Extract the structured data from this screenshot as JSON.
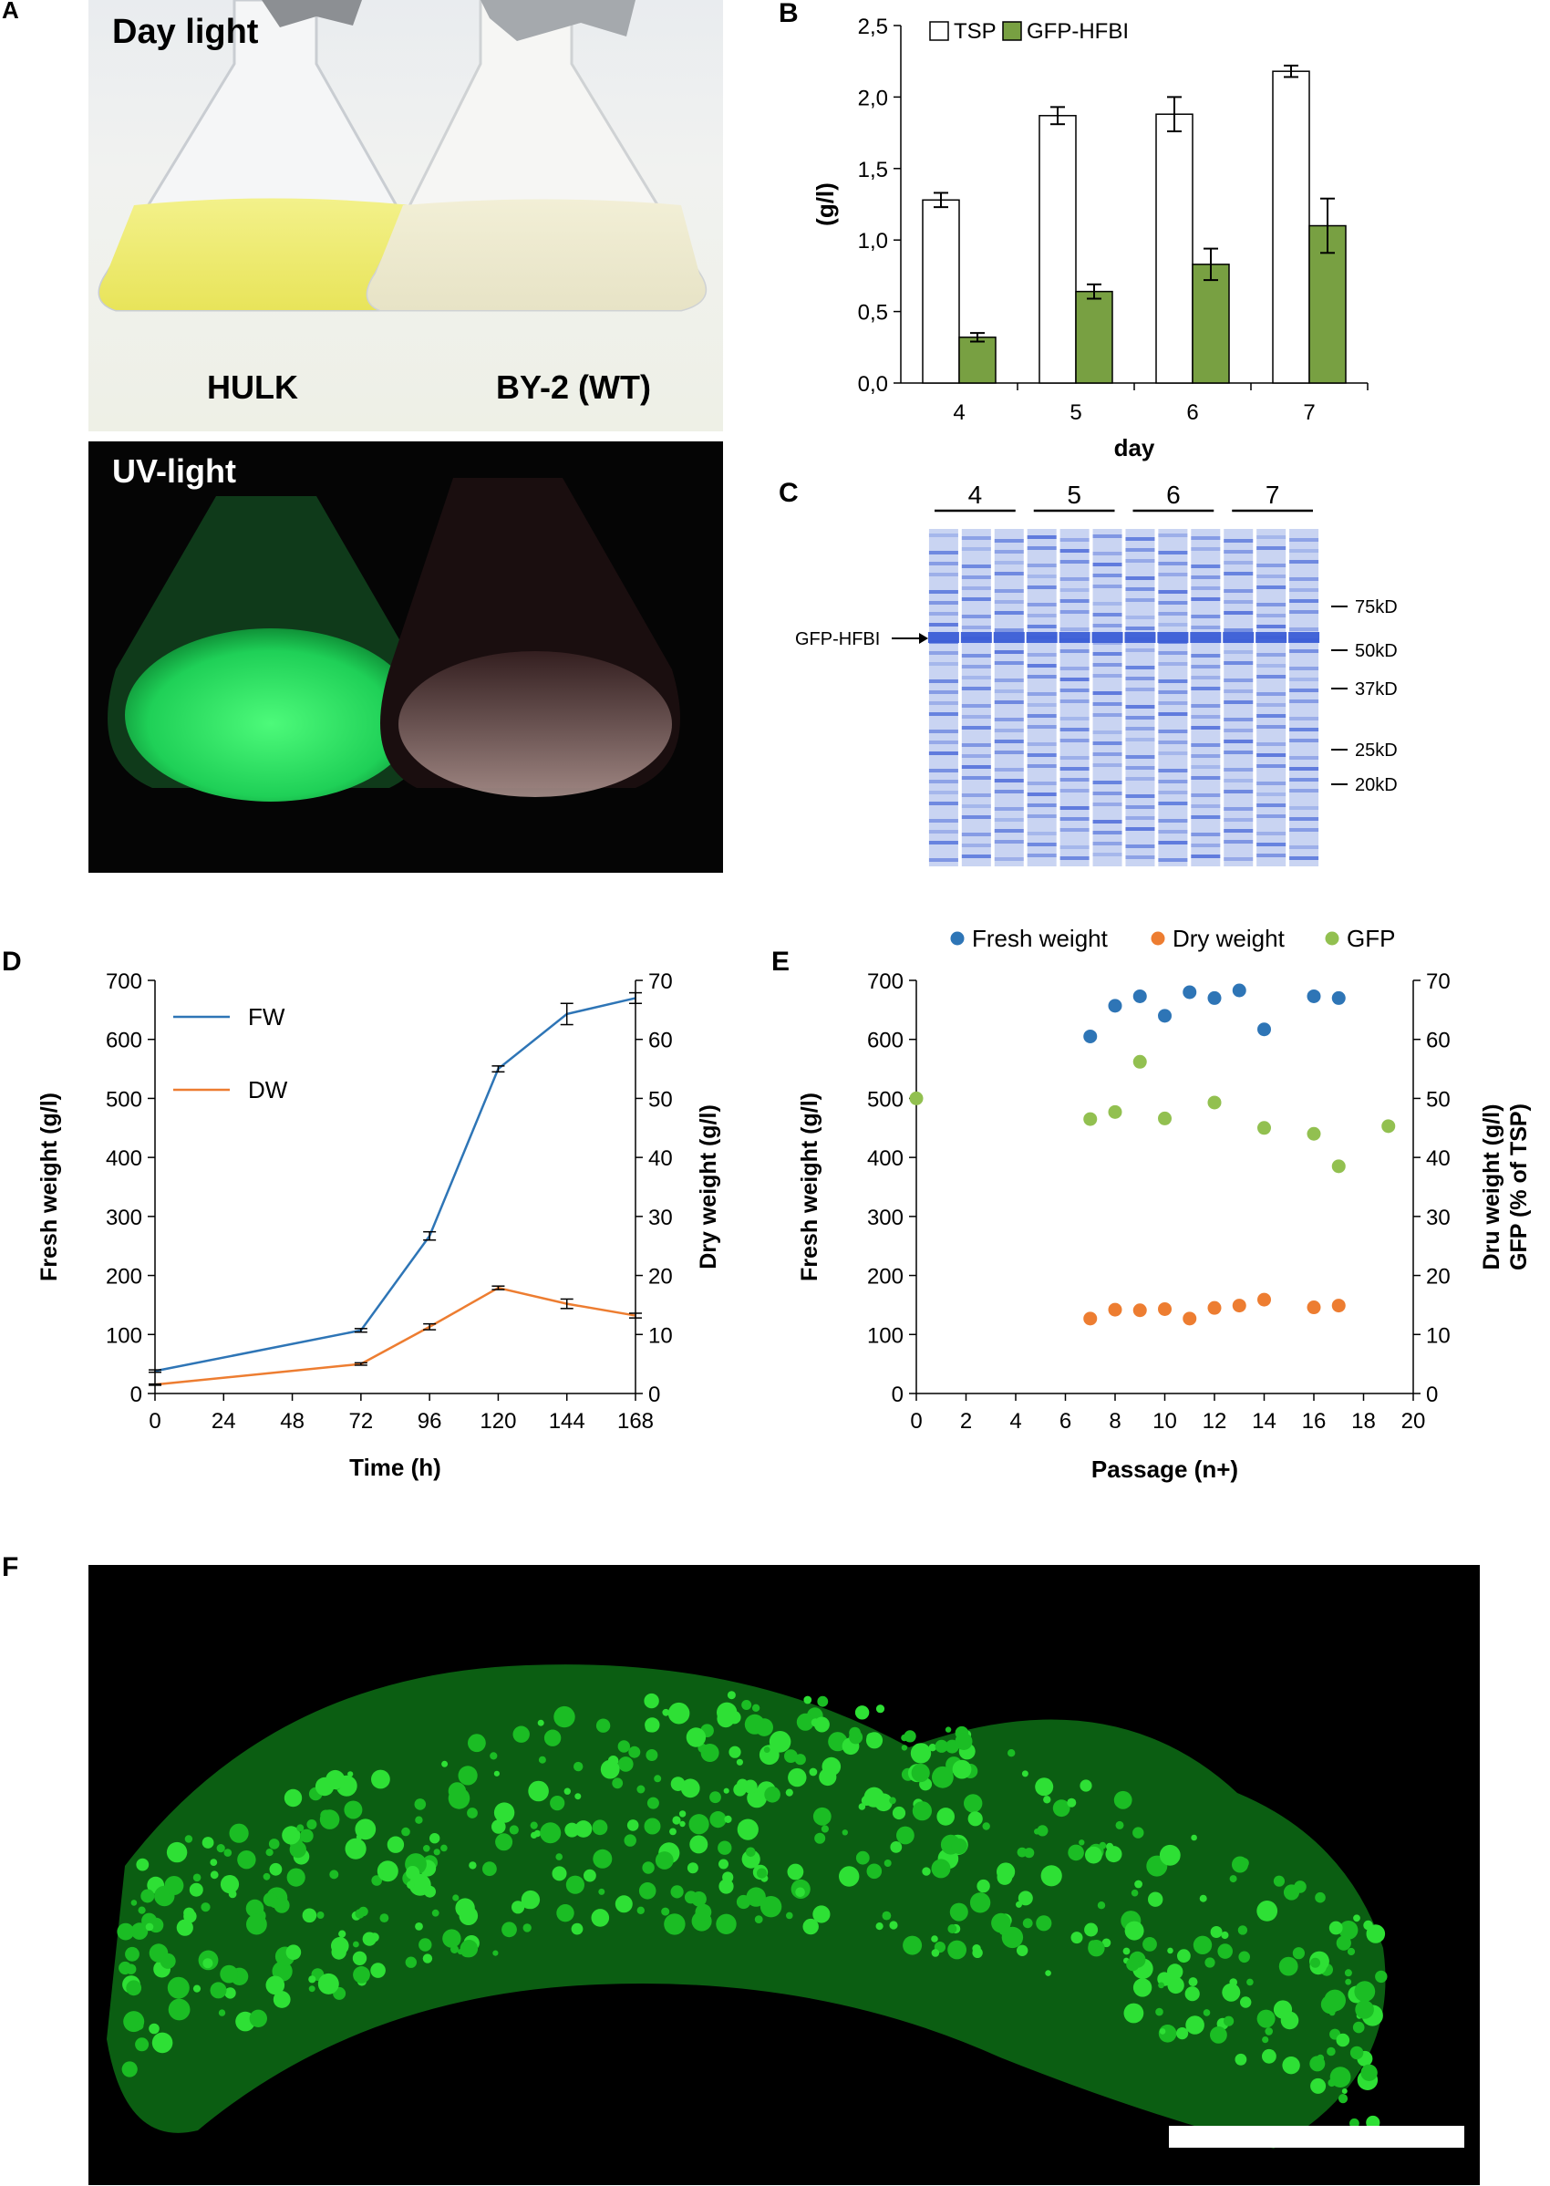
{
  "panel_letters": [
    "A",
    "B",
    "C",
    "D",
    "E",
    "F"
  ],
  "panel_a": {
    "top": {
      "title": "Day light",
      "left_label": "HULK",
      "right_label": "BY-2 (WT)"
    },
    "bottom": {
      "title": "UV-light"
    }
  },
  "panel_c": {
    "lane_groups": [
      "4",
      "5",
      "6",
      "7"
    ],
    "band_label": "GFP-HFBI",
    "markers": [
      "75kD",
      "50kD",
      "37kD",
      "25kD",
      "20kD"
    ],
    "colors": {
      "gel": "#3c5ed6",
      "gel_light": "#c9d4f2"
    }
  },
  "chart_data": [
    {
      "panel": "B",
      "type": "bar",
      "xlabel": "day",
      "ylabel": "(g/l)",
      "categories": [
        "4",
        "5",
        "6",
        "7"
      ],
      "ylim": [
        0,
        2.5
      ],
      "yticks": [
        "0,0",
        "0,5",
        "1,0",
        "1,5",
        "2,0",
        "2,5"
      ],
      "legend_position": "top",
      "series": [
        {
          "name": "TSP",
          "values": [
            1.28,
            1.87,
            1.88,
            2.18
          ],
          "errors": [
            0.05,
            0.06,
            0.12,
            0.04
          ],
          "color": "#ffffff"
        },
        {
          "name": "GFP-HFBI",
          "values": [
            0.32,
            0.64,
            0.83,
            1.1
          ],
          "errors": [
            0.03,
            0.05,
            0.11,
            0.19
          ],
          "color": "#78a042"
        }
      ]
    },
    {
      "panel": "D",
      "type": "line",
      "xlabel": "Time (h)",
      "ylabel": "Fresh weight (g/l)",
      "ylabel_right": "Dry weight (g/l)",
      "x": [
        0,
        72,
        96,
        120,
        144,
        168
      ],
      "xticks": [
        "0",
        "24",
        "48",
        "72",
        "96",
        "120",
        "144",
        "168"
      ],
      "xlim": [
        0,
        168
      ],
      "ylim": [
        0,
        700
      ],
      "yticks": [
        "0",
        "100",
        "200",
        "300",
        "400",
        "500",
        "600",
        "700"
      ],
      "ylim_right": [
        0,
        70
      ],
      "yticks_right": [
        "0",
        "10",
        "20",
        "30",
        "40",
        "50",
        "60",
        "70"
      ],
      "legend_position": "top-left",
      "series": [
        {
          "name": "FW",
          "axis": "left",
          "values": [
            38,
            107,
            267,
            550,
            643,
            670
          ],
          "errors": [
            2,
            3,
            7,
            5,
            18,
            9
          ],
          "color": "#2e75b6"
        },
        {
          "name": "DW",
          "axis": "right",
          "values": [
            1.5,
            5.0,
            11.3,
            17.9,
            15.2,
            13.2
          ],
          "errors": [
            0.1,
            0.2,
            0.5,
            0.3,
            0.8,
            0.4
          ],
          "color": "#ed7d31"
        }
      ]
    },
    {
      "panel": "E",
      "type": "scatter",
      "xlabel": "Passage (n+)",
      "ylabel": "Fresh weight (g/l)",
      "ylabel_right_line1": "Dru weight (g/l)",
      "ylabel_right_line2": "GFP (% of TSP)",
      "xlim": [
        0,
        20
      ],
      "xticks": [
        "0",
        "2",
        "4",
        "6",
        "8",
        "10",
        "12",
        "14",
        "16",
        "18",
        "20"
      ],
      "ylim": [
        0,
        700
      ],
      "yticks": [
        "0",
        "100",
        "200",
        "300",
        "400",
        "500",
        "600",
        "700"
      ],
      "ylim_right": [
        0,
        70
      ],
      "yticks_right": [
        "0",
        "10",
        "20",
        "30",
        "40",
        "50",
        "60",
        "70"
      ],
      "legend_position": "top",
      "series": [
        {
          "name": "Fresh weight",
          "axis": "left",
          "color": "#2e75b6",
          "x": [
            7,
            8,
            9,
            10,
            11,
            12,
            13,
            14,
            16,
            17
          ],
          "y": [
            605,
            657,
            673,
            640,
            680,
            670,
            683,
            617,
            673,
            670
          ]
        },
        {
          "name": "Dry weight",
          "axis": "right",
          "color": "#ed7d31",
          "x": [
            7,
            8,
            9,
            10,
            11,
            12,
            13,
            14,
            16,
            17
          ],
          "y": [
            12.7,
            14.2,
            14.1,
            14.3,
            12.7,
            14.5,
            14.9,
            15.9,
            14.6,
            14.9
          ]
        },
        {
          "name": "GFP",
          "axis": "right",
          "color": "#92c050",
          "x": [
            0,
            7,
            8,
            9,
            10,
            12,
            14,
            16,
            17,
            19
          ],
          "y": [
            50,
            46.5,
            47.7,
            56.2,
            46.6,
            49.3,
            45.0,
            44.0,
            38.5,
            45.3
          ]
        }
      ]
    }
  ]
}
